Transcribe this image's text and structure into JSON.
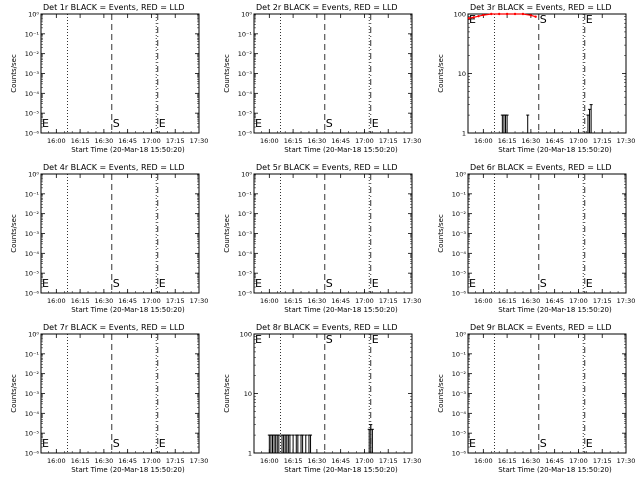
{
  "figure": {
    "x_tick_labels": [
      "16:00",
      "16:15",
      "16:30",
      "16:45",
      "17:00",
      "17:15",
      "17:30"
    ],
    "xlabel": "Start Time (20-Mar-18 15:50:20)",
    "ylabel": "Counts/sec"
  },
  "chart_data": [
    {
      "type": "line",
      "title": "Det 1r BLACK = Events, RED = LLD",
      "xlabel": "Start Time (20-Mar-18 15:50:20)",
      "ylabel": "Counts/sec",
      "xlim": [
        "15:50:20",
        "17:30:00"
      ],
      "y_scale": "log",
      "ylim": [
        1e-06,
        1
      ],
      "y_tick_labels": [
        "10⁰",
        "10⁻¹",
        "10⁻²",
        "10⁻³",
        "10⁻⁴",
        "10⁻⁵",
        "10⁻⁶"
      ],
      "markers": {
        "E_left": "15:50:20",
        "S": "16:35",
        "E": "17:04"
      },
      "dotted_lines": [
        "16:07",
        "17:03"
      ],
      "series": []
    },
    {
      "type": "line",
      "title": "Det 2r BLACK = Events, RED = LLD",
      "xlabel": "Start Time (20-Mar-18 15:50:20)",
      "ylabel": "Counts/sec",
      "xlim": [
        "15:50:20",
        "17:30:00"
      ],
      "y_scale": "log",
      "ylim": [
        1e-06,
        1
      ],
      "y_tick_labels": [
        "10⁰",
        "10⁻¹",
        "10⁻²",
        "10⁻³",
        "10⁻⁴",
        "10⁻⁵",
        "10⁻⁶"
      ],
      "markers": {
        "E_left": "15:50:20",
        "S": "16:35",
        "E": "17:04"
      },
      "dotted_lines": [
        "16:07",
        "17:03"
      ],
      "series": []
    },
    {
      "type": "line",
      "title": "Det 3r BLACK = Events, RED = LLD",
      "xlabel": "Start Time (20-Mar-18 15:50:20)",
      "ylabel": "Counts/sec",
      "xlim": [
        "15:50:20",
        "17:30:00"
      ],
      "y_scale": "log",
      "ylim": [
        1,
        100
      ],
      "y_tick_labels": [
        "1",
        "10",
        "100"
      ],
      "markers": {
        "E_left": "15:50:20",
        "S": "16:35",
        "E": "17:04"
      },
      "dotted_lines": [
        "16:07",
        "17:03"
      ],
      "series": [
        {
          "color": "#ff0000",
          "x": [
            "15:51",
            "15:54",
            "15:57",
            "16:00",
            "16:05",
            "16:10",
            "16:15",
            "16:20",
            "16:25",
            "16:30",
            "16:33"
          ],
          "y": [
            85,
            88,
            92,
            96,
            100,
            100,
            100,
            100,
            100,
            95,
            90
          ]
        },
        {
          "color": "#000000",
          "x": [
            "16:12",
            "16:13",
            "16:14",
            "16:15",
            "16:28",
            "17:06",
            "17:07",
            "17:08"
          ],
          "y": [
            2,
            2,
            2,
            2,
            2,
            2,
            2.5,
            3
          ]
        }
      ]
    },
    {
      "type": "line",
      "title": "Det 4r BLACK = Events, RED = LLD",
      "xlabel": "Start Time (20-Mar-18 15:50:20)",
      "ylabel": "Counts/sec",
      "xlim": [
        "15:50:20",
        "17:30:00"
      ],
      "y_scale": "log",
      "ylim": [
        1e-06,
        1
      ],
      "y_tick_labels": [
        "10⁰",
        "10⁻¹",
        "10⁻²",
        "10⁻³",
        "10⁻⁴",
        "10⁻⁵",
        "10⁻⁶"
      ],
      "markers": {
        "E_left": "15:50:20",
        "S": "16:35",
        "E": "17:04"
      },
      "dotted_lines": [
        "16:07",
        "17:03"
      ],
      "series": []
    },
    {
      "type": "line",
      "title": "Det 5r BLACK = Events, RED = LLD",
      "xlabel": "Start Time (20-Mar-18 15:50:20)",
      "ylabel": "Counts/sec",
      "xlim": [
        "15:50:20",
        "17:30:00"
      ],
      "y_scale": "log",
      "ylim": [
        1e-06,
        1
      ],
      "y_tick_labels": [
        "10⁰",
        "10⁻¹",
        "10⁻²",
        "10⁻³",
        "10⁻⁴",
        "10⁻⁵",
        "10⁻⁶"
      ],
      "markers": {
        "E_left": "15:50:20",
        "S": "16:35",
        "E": "17:04"
      },
      "dotted_lines": [
        "16:07",
        "17:03"
      ],
      "series": []
    },
    {
      "type": "line",
      "title": "Det 6r BLACK = Events, RED = LLD",
      "xlabel": "Start Time (20-Mar-18 15:50:20)",
      "ylabel": "Counts/sec",
      "xlim": [
        "15:50:20",
        "17:30:00"
      ],
      "y_scale": "log",
      "ylim": [
        1e-06,
        1
      ],
      "y_tick_labels": [
        "10⁰",
        "10⁻¹",
        "10⁻²",
        "10⁻³",
        "10⁻⁴",
        "10⁻⁵",
        "10⁻⁶"
      ],
      "markers": {
        "E_left": "15:50:20",
        "S": "16:35",
        "E": "17:04"
      },
      "dotted_lines": [
        "16:07",
        "17:03"
      ],
      "series": []
    },
    {
      "type": "line",
      "title": "Det 7r BLACK = Events, RED = LLD",
      "xlabel": "Start Time (20-Mar-18 15:50:20)",
      "ylabel": "Counts/sec",
      "xlim": [
        "15:50:20",
        "17:30:00"
      ],
      "y_scale": "log",
      "ylim": [
        1e-06,
        1
      ],
      "y_tick_labels": [
        "10⁰",
        "10⁻¹",
        "10⁻²",
        "10⁻³",
        "10⁻⁴",
        "10⁻⁵",
        "10⁻⁶"
      ],
      "markers": {
        "E_left": "15:50:20",
        "S": "16:35",
        "E": "17:04"
      },
      "dotted_lines": [
        "16:07",
        "17:03"
      ],
      "series": []
    },
    {
      "type": "line",
      "title": "Det 8r BLACK = Events, RED = LLD",
      "xlabel": "Start Time (20-Mar-18 15:50:20)",
      "ylabel": "Counts/sec",
      "xlim": [
        "15:50:20",
        "17:30:00"
      ],
      "y_scale": "log",
      "ylim": [
        1,
        100
      ],
      "y_tick_labels": [
        "1",
        "10",
        "100"
      ],
      "markers": {
        "E_left": "15:50:20",
        "S": "16:35",
        "E": "17:04"
      },
      "dotted_lines": [
        "16:07",
        "17:03"
      ],
      "series": [
        {
          "color": "#000000",
          "x": [
            "16:00",
            "16:01",
            "16:02",
            "16:03",
            "16:04",
            "16:05",
            "16:06",
            "16:08",
            "16:09",
            "16:10",
            "16:11",
            "16:12",
            "16:13",
            "16:15",
            "16:17",
            "16:18",
            "16:20",
            "16:21",
            "16:23",
            "16:25",
            "16:26",
            "17:03",
            "17:04",
            "17:05"
          ],
          "y": [
            2,
            2,
            2,
            2,
            2,
            2,
            2,
            2,
            2,
            2,
            2,
            2,
            2,
            2,
            2,
            2,
            2,
            2,
            2,
            2,
            2,
            2.5,
            3,
            2.5
          ]
        }
      ]
    },
    {
      "type": "line",
      "title": "Det 9r BLACK = Events, RED = LLD",
      "xlabel": "Start Time (20-Mar-18 15:50:20)",
      "ylabel": "Counts/sec",
      "xlim": [
        "15:50:20",
        "17:30:00"
      ],
      "y_scale": "log",
      "ylim": [
        1e-06,
        1
      ],
      "y_tick_labels": [
        "10⁰",
        "10⁻¹",
        "10⁻²",
        "10⁻³",
        "10⁻⁴",
        "10⁻⁵",
        "10⁻⁶"
      ],
      "markers": {
        "E_left": "15:50:20",
        "S": "16:35",
        "E": "17:04"
      },
      "dotted_lines": [
        "16:07",
        "17:03"
      ],
      "series": []
    }
  ]
}
